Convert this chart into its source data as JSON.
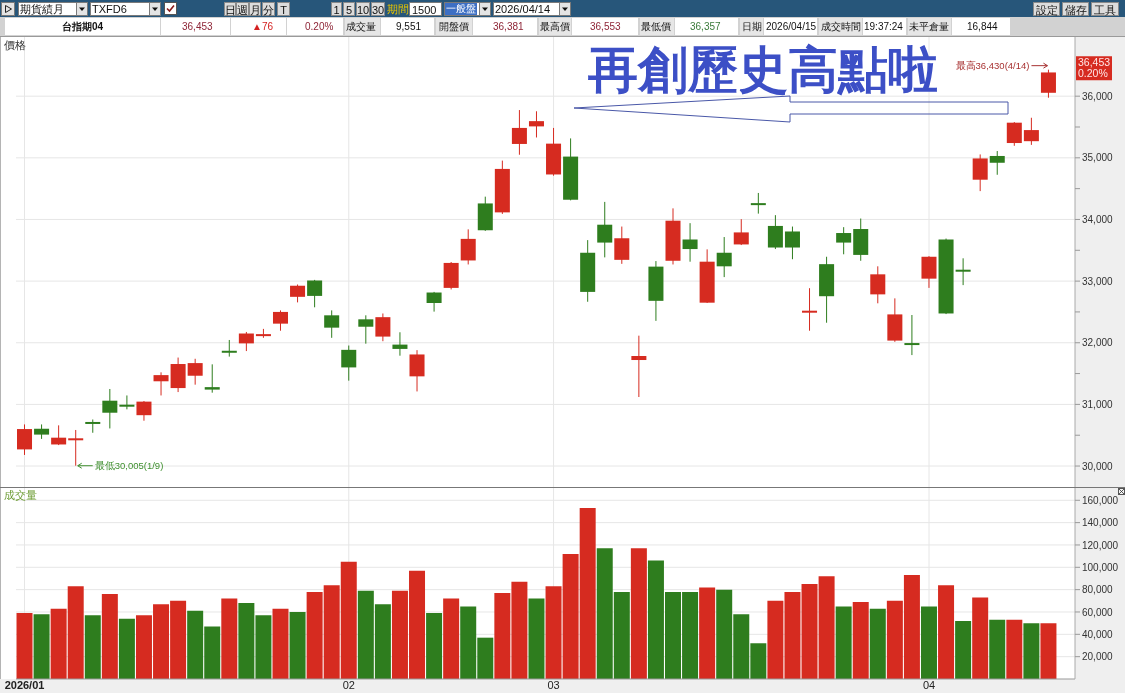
{
  "chart_data": [
    {
      "type": "other",
      "annotations": [
        "期貨績月",
        "TXFD6",
        "日",
        "週",
        "月",
        "分",
        "T",
        "1",
        "5",
        "10",
        "30",
        "期間",
        "1500",
        "一般盤",
        "2026/04/14",
        "設定",
        "儲存",
        "工具",
        "台指期04",
        "36,453",
        "▲76",
        "0.20%",
        "成交量",
        "9,551",
        "開盤價",
        "36,381",
        "最高價",
        "36,553",
        "最低價",
        "36,357",
        "日期",
        "2026/04/15",
        "成交時間",
        "19:37:24",
        "未平倉量",
        "16,844"
      ]
    },
    {
      "type": "candlestick",
      "title": "再創歷史高點啦",
      "ylabel": "價格",
      "categories": [
        "2026/01",
        null,
        null,
        null,
        null,
        null,
        null,
        null,
        null,
        null,
        null,
        null,
        null,
        null,
        null,
        null,
        null,
        null,
        null,
        "02",
        null,
        null,
        null,
        null,
        null,
        null,
        null,
        null,
        null,
        null,
        null,
        "03",
        null,
        null,
        null,
        null,
        null,
        null,
        null,
        null,
        null,
        null,
        null,
        null,
        null,
        null,
        null,
        null,
        null,
        null,
        null,
        null,
        null,
        "04",
        null,
        null,
        null,
        null,
        null,
        null,
        null
      ],
      "ohlc": [
        [
          30270,
          30675,
          30180,
          30600
        ],
        [
          30605,
          30675,
          30440,
          30510
        ],
        [
          30350,
          30660,
          30340,
          30460
        ],
        [
          30445,
          30585,
          30005,
          30450
        ],
        [
          30715,
          30755,
          30540,
          30700
        ],
        [
          31060,
          31250,
          30610,
          30865
        ],
        [
          30995,
          31145,
          30920,
          30975
        ],
        [
          30825,
          31055,
          30735,
          31045
        ],
        [
          31375,
          31520,
          31145,
          31475
        ],
        [
          31265,
          31760,
          31200,
          31655
        ],
        [
          31465,
          31740,
          31320,
          31670
        ],
        [
          31280,
          31650,
          31190,
          31240
        ],
        [
          31870,
          32045,
          31775,
          31840
        ],
        [
          31990,
          32175,
          31865,
          32150
        ],
        [
          32120,
          32225,
          32080,
          32140
        ],
        [
          32310,
          32525,
          32195,
          32500
        ],
        [
          32745,
          32945,
          32655,
          32925
        ],
        [
          33010,
          33020,
          32575,
          32760
        ],
        [
          32445,
          32525,
          32080,
          32245
        ],
        [
          31885,
          31955,
          31385,
          31600
        ],
        [
          32380,
          32445,
          31985,
          32260
        ],
        [
          32100,
          32475,
          32025,
          32415
        ],
        [
          31970,
          32170,
          31790,
          31900
        ],
        [
          31455,
          31880,
          31210,
          31810
        ],
        [
          32815,
          32825,
          32505,
          32645
        ],
        [
          32890,
          33310,
          32865,
          33295
        ],
        [
          33335,
          33840,
          33270,
          33685
        ],
        [
          34260,
          34370,
          33815,
          33825
        ],
        [
          34115,
          34955,
          34090,
          34820
        ],
        [
          35225,
          35775,
          35050,
          35485
        ],
        [
          35510,
          35755,
          35330,
          35595
        ],
        [
          34730,
          35485,
          34710,
          35230
        ],
        [
          35020,
          35315,
          34310,
          34320
        ],
        [
          33460,
          33665,
          32665,
          32825
        ],
        [
          33915,
          34285,
          33385,
          33625
        ],
        [
          33345,
          33885,
          33280,
          33695
        ],
        [
          31720,
          32115,
          31120,
          31785
        ],
        [
          33235,
          33325,
          32355,
          32680
        ],
        [
          33330,
          34180,
          33270,
          33980
        ],
        [
          33675,
          33940,
          33315,
          33520
        ],
        [
          32650,
          33515,
          32645,
          33315
        ],
        [
          33460,
          33715,
          33065,
          33240
        ],
        [
          33595,
          34005,
          33585,
          33790
        ],
        [
          34265,
          34430,
          34095,
          34250
        ],
        [
          33895,
          34070,
          33520,
          33545
        ],
        [
          33805,
          33885,
          33355,
          33545
        ],
        [
          32505,
          32885,
          32195,
          32520
        ],
        [
          33275,
          33395,
          32325,
          32755
        ],
        [
          33780,
          33875,
          33435,
          33625
        ],
        [
          33845,
          34015,
          33330,
          33425
        ],
        [
          32785,
          33240,
          32640,
          33110
        ],
        [
          32035,
          32720,
          32015,
          32460
        ],
        [
          31995,
          32450,
          31800,
          31980
        ],
        [
          33040,
          33405,
          32890,
          33395
        ],
        [
          33675,
          33690,
          32465,
          32475
        ],
        [
          33185,
          33370,
          32935,
          33170
        ],
        [
          34645,
          35055,
          34460,
          34990
        ],
        [
          35030,
          35110,
          34725,
          34920
        ],
        [
          35240,
          35580,
          35195,
          35570
        ],
        [
          35270,
          35650,
          35210,
          35450
        ],
        [
          36055,
          36430,
          35975,
          36385
        ]
      ],
      "colors": [
        "#d62b20",
        "#2e7d1e",
        "#d62b20",
        "#d62b20",
        "#2e7d1e",
        "#2e7d1e",
        "#2e7d1e",
        "#d62b20",
        "#d62b20",
        "#d62b20",
        "#d62b20",
        "#2e7d1e",
        "#2e7d1e",
        "#d62b20",
        "#d62b20",
        "#d62b20",
        "#d62b20",
        "#2e7d1e",
        "#2e7d1e",
        "#2e7d1e",
        "#2e7d1e",
        "#d62b20",
        "#2e7d1e",
        "#d62b20",
        "#2e7d1e",
        "#d62b20",
        "#d62b20",
        "#2e7d1e",
        "#d62b20",
        "#d62b20",
        "#d62b20",
        "#d62b20",
        "#2e7d1e",
        "#2e7d1e",
        "#2e7d1e",
        "#d62b20",
        "#d62b20",
        "#2e7d1e",
        "#d62b20",
        "#2e7d1e",
        "#d62b20",
        "#2e7d1e",
        "#d62b20",
        "#2e7d1e",
        "#2e7d1e",
        "#2e7d1e",
        "#d62b20",
        "#2e7d1e",
        "#2e7d1e",
        "#2e7d1e",
        "#d62b20",
        "#d62b20",
        "#2e7d1e",
        "#d62b20",
        "#2e7d1e",
        "#2e7d1e",
        "#d62b20",
        "#2e7d1e",
        "#d62b20",
        "#d62b20",
        "#d62b20"
      ],
      "ylim": [
        29660,
        36960
      ],
      "yticks": [
        {
          "value": 30000,
          "label": "30,000"
        },
        {
          "value": 30500,
          "label": null
        },
        {
          "value": 31000,
          "label": "31,000"
        },
        {
          "value": 31500,
          "label": null
        },
        {
          "value": 32000,
          "label": "32,000"
        },
        {
          "value": 32500,
          "label": null
        },
        {
          "value": 33000,
          "label": "33,000"
        },
        {
          "value": 33500,
          "label": null
        },
        {
          "value": 34000,
          "label": "34,000"
        },
        {
          "value": 34500,
          "label": null
        },
        {
          "value": 35000,
          "label": "35,000"
        },
        {
          "value": 35500,
          "label": null
        },
        {
          "value": 36000,
          "label": "36,000"
        }
      ],
      "grid": true,
      "tick_labels": "y",
      "annotations": [
        "最高36,430(4/14)",
        "最低30,005(1/9)",
        {
          "text": "36,453\n0.20%",
          "y": 36453
        }
      ]
    },
    {
      "type": "bar",
      "ylabel": "成交量",
      "categories": [
        "2026/01",
        null,
        null,
        null,
        null,
        null,
        null,
        null,
        null,
        null,
        null,
        null,
        null,
        null,
        null,
        null,
        null,
        null,
        null,
        "02",
        null,
        null,
        null,
        null,
        null,
        null,
        null,
        null,
        null,
        null,
        null,
        "03",
        null,
        null,
        null,
        null,
        null,
        null,
        null,
        null,
        null,
        null,
        null,
        null,
        null,
        null,
        null,
        null,
        null,
        null,
        null,
        null,
        null,
        "04",
        null,
        null,
        null,
        null,
        null,
        null,
        null
      ],
      "values": [
        59000,
        58000,
        63000,
        83000,
        57000,
        76000,
        54000,
        57000,
        67000,
        70000,
        61000,
        47000,
        72000,
        68000,
        57000,
        63000,
        60000,
        78000,
        84000,
        105000,
        79000,
        67000,
        79000,
        97000,
        59000,
        72000,
        65000,
        37000,
        77000,
        87000,
        72000,
        83000,
        112000,
        153000,
        117000,
        78000,
        117000,
        106000,
        78000,
        78000,
        82000,
        80000,
        58000,
        32000,
        70000,
        78000,
        85000,
        92000,
        65000,
        69000,
        63000,
        70000,
        93000,
        65000,
        84000,
        52000,
        73000,
        53000,
        53000,
        50000,
        50000
      ],
      "colors": [
        "#d62b20",
        "#2e7d1e",
        "#d62b20",
        "#d62b20",
        "#2e7d1e",
        "#d62b20",
        "#2e7d1e",
        "#d62b20",
        "#d62b20",
        "#d62b20",
        "#2e7d1e",
        "#2e7d1e",
        "#d62b20",
        "#2e7d1e",
        "#2e7d1e",
        "#d62b20",
        "#2e7d1e",
        "#d62b20",
        "#d62b20",
        "#d62b20",
        "#2e7d1e",
        "#2e7d1e",
        "#d62b20",
        "#d62b20",
        "#2e7d1e",
        "#d62b20",
        "#2e7d1e",
        "#2e7d1e",
        "#d62b20",
        "#d62b20",
        "#2e7d1e",
        "#d62b20",
        "#d62b20",
        "#d62b20",
        "#2e7d1e",
        "#2e7d1e",
        "#d62b20",
        "#2e7d1e",
        "#2e7d1e",
        "#2e7d1e",
        "#d62b20",
        "#2e7d1e",
        "#2e7d1e",
        "#2e7d1e",
        "#d62b20",
        "#d62b20",
        "#d62b20",
        "#d62b20",
        "#2e7d1e",
        "#d62b20",
        "#2e7d1e",
        "#d62b20",
        "#d62b20",
        "#2e7d1e",
        "#d62b20",
        "#2e7d1e",
        "#d62b20",
        "#2e7d1e",
        "#d62b20",
        "#2e7d1e",
        "#d62b20"
      ],
      "ylim": [
        0,
        171000
      ],
      "yticks": [
        {
          "value": 20000,
          "label": "20,000"
        },
        {
          "value": 40000,
          "label": "40,000"
        },
        {
          "value": 60000,
          "label": "60,000"
        },
        {
          "value": 80000,
          "label": "80,000"
        },
        {
          "value": 100000,
          "label": "100,000"
        },
        {
          "value": 120000,
          "label": "120,000"
        },
        {
          "value": 140000,
          "label": "140,000"
        },
        {
          "value": 160000,
          "label": "160,000"
        }
      ],
      "grid": true
    }
  ]
}
